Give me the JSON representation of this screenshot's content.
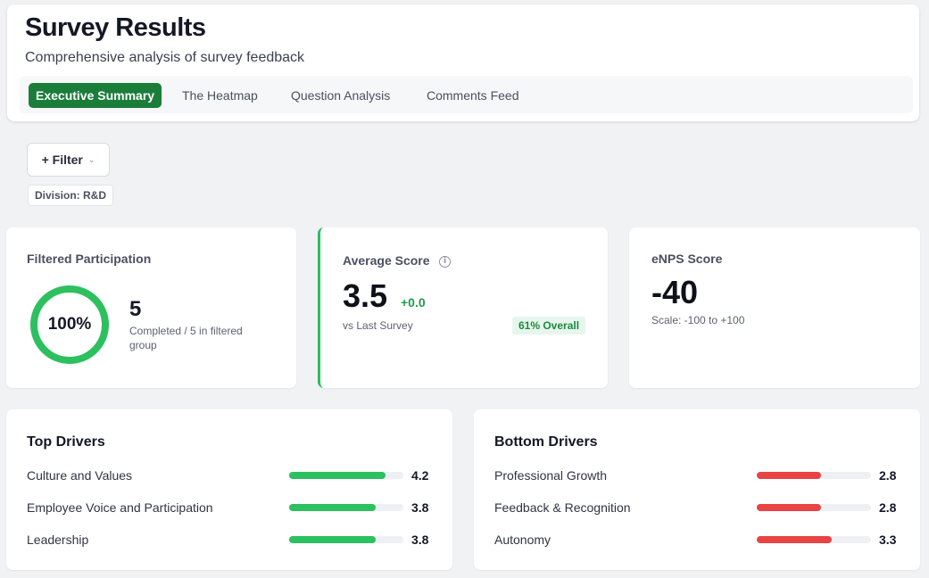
{
  "header": {
    "title": "Survey Results",
    "subtitle": "Comprehensive analysis of survey feedback",
    "tabs": [
      {
        "label": "Executive Summary",
        "active": true
      },
      {
        "label": "The Heatmap",
        "active": false
      },
      {
        "label": "Question Analysis",
        "active": false
      },
      {
        "label": "Comments Feed",
        "active": false
      }
    ]
  },
  "filters": {
    "button_label": "+ Filter",
    "active_chip": "Division: R&D"
  },
  "participation": {
    "label": "Filtered Participation",
    "percent_text": "100%",
    "percent_value": 1.0,
    "count": "5",
    "description": "Completed / 5 in filtered group"
  },
  "average_score": {
    "label": "Average Score",
    "value": "3.5",
    "delta": "+0.0",
    "comparison": "vs Last Survey",
    "overall_badge": "61% Overall"
  },
  "enps": {
    "label": "eNPS Score",
    "value": "-40",
    "scale": "Scale: -100 to +100"
  },
  "top_drivers": {
    "title": "Top Drivers",
    "color": "#2cc05f",
    "items": [
      {
        "name": "Culture and Values",
        "score": "4.2",
        "value": 4.2
      },
      {
        "name": "Employee Voice and Participation",
        "score": "3.8",
        "value": 3.8
      },
      {
        "name": "Leadership",
        "score": "3.8",
        "value": 3.8
      }
    ]
  },
  "bottom_drivers": {
    "title": "Bottom Drivers",
    "color": "#e84444",
    "items": [
      {
        "name": "Professional Growth",
        "score": "2.8",
        "value": 2.8
      },
      {
        "name": "Feedback & Recognition",
        "score": "2.8",
        "value": 2.8
      },
      {
        "name": "Autonomy",
        "score": "3.3",
        "value": 3.3
      }
    ]
  },
  "colors": {
    "accent_green": "#1a7d3a",
    "ring_green": "#2cc05f",
    "card_highlight": "#2cc05f"
  }
}
